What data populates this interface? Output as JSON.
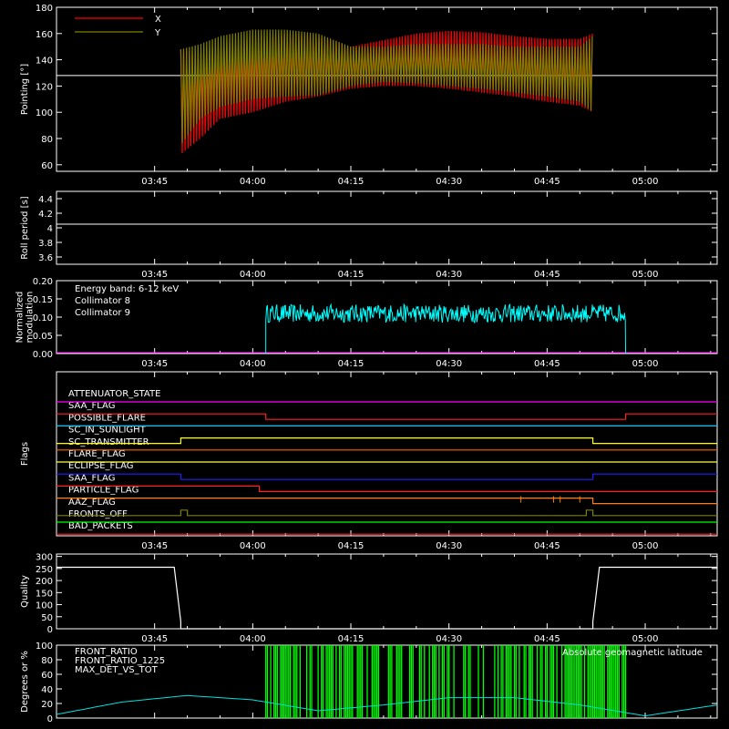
{
  "chart_data": [
    {
      "id": "pointing",
      "type": "line",
      "ylabel": "Pointing [°]",
      "ylim": [
        55,
        180
      ],
      "yticks": [
        60,
        80,
        100,
        120,
        140,
        160,
        180
      ],
      "xlim": [
        "03:30",
        "05:11"
      ],
      "xtick_labels": [
        "03:45",
        "04:00",
        "04:15",
        "04:30",
        "04:45",
        "05:00"
      ],
      "reference_line": 128,
      "data_interval": [
        "03:49",
        "04:52"
      ],
      "series": [
        {
          "name": "X",
          "color": "#ff0000",
          "x": [
            "03:49",
            "03:52",
            "03:55",
            "04:00",
            "04:05",
            "04:10",
            "04:15",
            "04:20",
            "04:25",
            "04:30",
            "04:35",
            "04:40",
            "04:45",
            "04:50",
            "04:52"
          ],
          "upper": [
            148,
            145,
            150,
            153,
            160,
            158,
            150,
            155,
            160,
            162,
            161,
            158,
            156,
            156,
            160
          ],
          "lower": [
            68,
            80,
            95,
            100,
            108,
            112,
            118,
            120,
            120,
            118,
            115,
            112,
            108,
            105,
            100
          ]
        },
        {
          "name": "Y",
          "color": "#808000",
          "x": [
            "03:49",
            "03:52",
            "03:55",
            "04:00",
            "04:05",
            "04:10",
            "04:15",
            "04:20",
            "04:25",
            "04:30",
            "04:35",
            "04:40",
            "04:45",
            "04:50",
            "04:52"
          ],
          "upper": [
            148,
            152,
            158,
            163,
            163,
            160,
            150,
            150,
            152,
            152,
            152,
            150,
            150,
            150,
            158
          ],
          "lower": [
            75,
            95,
            104,
            110,
            112,
            113,
            120,
            123,
            122,
            120,
            118,
            115,
            112,
            108,
            100
          ]
        }
      ]
    },
    {
      "id": "roll",
      "type": "line",
      "ylabel": "Roll period [s]",
      "ylim": [
        3.5,
        4.5
      ],
      "yticks": [
        3.6,
        3.8,
        4.0,
        4.2,
        4.4
      ],
      "xtick_labels": [
        "03:45",
        "04:00",
        "04:15",
        "04:30",
        "04:45",
        "05:00"
      ],
      "series": [
        {
          "name": "",
          "color": "#ffffff",
          "x": [
            "03:30",
            "05:11"
          ],
          "values": [
            4.05,
            4.05
          ]
        }
      ]
    },
    {
      "id": "modulation",
      "type": "line",
      "ylabel": "Normalized modulation",
      "ylim": [
        0,
        0.2
      ],
      "yticks": [
        0.0,
        0.05,
        0.1,
        0.15,
        0.2
      ],
      "ytick_labels": [
        "0.00",
        "0.05",
        "0.10",
        "0.15",
        "0.20"
      ],
      "xtick_labels": [
        "03:45",
        "04:00",
        "04:15",
        "04:30",
        "04:45",
        "05:00"
      ],
      "annotation": "Energy band: 6-12 keV",
      "series": [
        {
          "name": "Collimator 8",
          "color": "#00ffff",
          "x": [
            "04:02",
            "04:57"
          ],
          "mean": 0.11,
          "noise": 0.025
        },
        {
          "name": "Collimator 9",
          "color": "#ff00ff",
          "x": [
            "03:30",
            "05:11"
          ],
          "values": [
            0,
            0
          ]
        }
      ]
    },
    {
      "id": "flags",
      "type": "line",
      "ylabel": "Flags",
      "xtick_labels": [
        "03:45",
        "04:00",
        "04:15",
        "04:30",
        "04:45",
        "05:00"
      ],
      "series": [
        {
          "name": "ATTENUATOR_STATE",
          "color": "#ff00ff",
          "x": [
            "03:30",
            "05:11"
          ],
          "state": [
            0,
            0
          ]
        },
        {
          "name": "SAA_FLAG",
          "color": "#ff2020",
          "x": [
            "03:30",
            "04:00",
            "04:02",
            "04:58",
            "05:00",
            "05:11"
          ],
          "state": [
            1,
            1,
            0,
            0,
            1,
            1
          ]
        },
        {
          "name": "POSSIBLE_FLARE",
          "color": "#00c8ff",
          "x": [
            "03:30",
            "05:11"
          ],
          "state": [
            0,
            0
          ]
        },
        {
          "name": "SC_IN_SUNLIGHT",
          "color": "#ffff00",
          "x": [
            "03:30",
            "03:49",
            "03:49",
            "04:52",
            "04:52",
            "05:11"
          ],
          "state": [
            0,
            0,
            1,
            1,
            0,
            0
          ]
        },
        {
          "name": "SC_TRANSMITTER",
          "color": "#ff6000",
          "x": [
            "03:30",
            "05:11"
          ],
          "state": [
            0,
            0
          ]
        },
        {
          "name": "FLARE_FLAG",
          "color": "#ffff40",
          "x": [
            "03:30",
            "05:11"
          ],
          "state": [
            0,
            0
          ]
        },
        {
          "name": "ECLIPSE_FLAG",
          "color": "#2020ff",
          "x": [
            "03:30",
            "03:49",
            "03:49",
            "04:52",
            "04:52",
            "05:11"
          ],
          "state": [
            1,
            1,
            0,
            0,
            1,
            1
          ]
        },
        {
          "name": "SAA_FLAG",
          "color": "#ff2020",
          "x": [
            "03:30",
            "04:01",
            "04:01",
            "05:11"
          ],
          "state": [
            1,
            1,
            0,
            0
          ]
        },
        {
          "name": "PARTICLE_FLAG",
          "color": "#ff8000",
          "x": [
            "03:30",
            "05:11"
          ],
          "state": [
            0,
            0
          ]
        },
        {
          "name": "AAZ_FLAG",
          "color": "#808000",
          "x": [
            "03:30",
            "05:11"
          ],
          "state": [
            0,
            0
          ]
        },
        {
          "name": "FRONTS_OFF",
          "color": "#00ff00",
          "x": [
            "03:30",
            "05:11"
          ],
          "state": [
            0,
            0
          ]
        },
        {
          "name": "BAD_PACKETS",
          "color": "#ff2020",
          "x": [
            "03:30",
            "05:11"
          ],
          "state": [
            0,
            0
          ]
        }
      ]
    },
    {
      "id": "quality",
      "type": "line",
      "ylabel": "Quality",
      "ylim": [
        0,
        310
      ],
      "yticks": [
        0,
        50,
        100,
        150,
        200,
        250,
        300
      ],
      "xtick_labels": [
        "03:45",
        "04:00",
        "04:15",
        "04:30",
        "04:45",
        "05:00"
      ],
      "series": [
        {
          "name": "",
          "color": "#ffffff",
          "x": [
            "03:30",
            "03:48",
            "03:49",
            "03:49",
            "04:52",
            "04:52",
            "04:53",
            "05:11"
          ],
          "values": [
            255,
            255,
            30,
            0,
            0,
            30,
            255,
            255
          ]
        }
      ]
    },
    {
      "id": "ratios",
      "type": "line",
      "ylabel": "Degrees or %",
      "ylim": [
        0,
        100
      ],
      "yticks": [
        0,
        20,
        40,
        60,
        80,
        100
      ],
      "series": [
        {
          "name": "FRONT_RATIO",
          "color": "#ffff00",
          "values": []
        },
        {
          "name": "FRONT_RATIO_1225",
          "color": "#00ff00",
          "x": [
            "04:02",
            "04:57"
          ],
          "values": [
            100,
            100
          ]
        },
        {
          "name": "MAX_DET_VS_TOT",
          "color": "#ff8000",
          "values": []
        },
        {
          "name": "Absolute geomagnetic latitude",
          "color": "#00e0e0",
          "x": [
            "03:30",
            "03:40",
            "03:50",
            "04:00",
            "04:10",
            "04:20",
            "04:30",
            "04:40",
            "04:50",
            "05:00",
            "05:11"
          ],
          "values": [
            5,
            22,
            31,
            25,
            10,
            18,
            28,
            28,
            18,
            3,
            18
          ]
        }
      ]
    }
  ],
  "labels": {
    "pointing_x": "X",
    "pointing_y": "Y",
    "energy_band": "Energy band: 6-12 keV",
    "coll8": "Collimator 8",
    "coll9": "Collimator 9",
    "flag_names": [
      "ATTENUATOR_STATE",
      "SAA_FLAG",
      "POSSIBLE_FLARE",
      "SC_IN_SUNLIGHT",
      "SC_TRANSMITTER",
      "FLARE_FLAG",
      "ECLIPSE_FLAG",
      "SAA_FLAG",
      "PARTICLE_FLAG",
      "AAZ_FLAG",
      "FRONTS_OFF",
      "BAD_PACKETS"
    ],
    "ratio_legend": [
      "FRONT_RATIO",
      "FRONT_RATIO_1225",
      "MAX_DET_VS_TOT"
    ],
    "geolat": "Absolute geomagnetic latitude"
  }
}
